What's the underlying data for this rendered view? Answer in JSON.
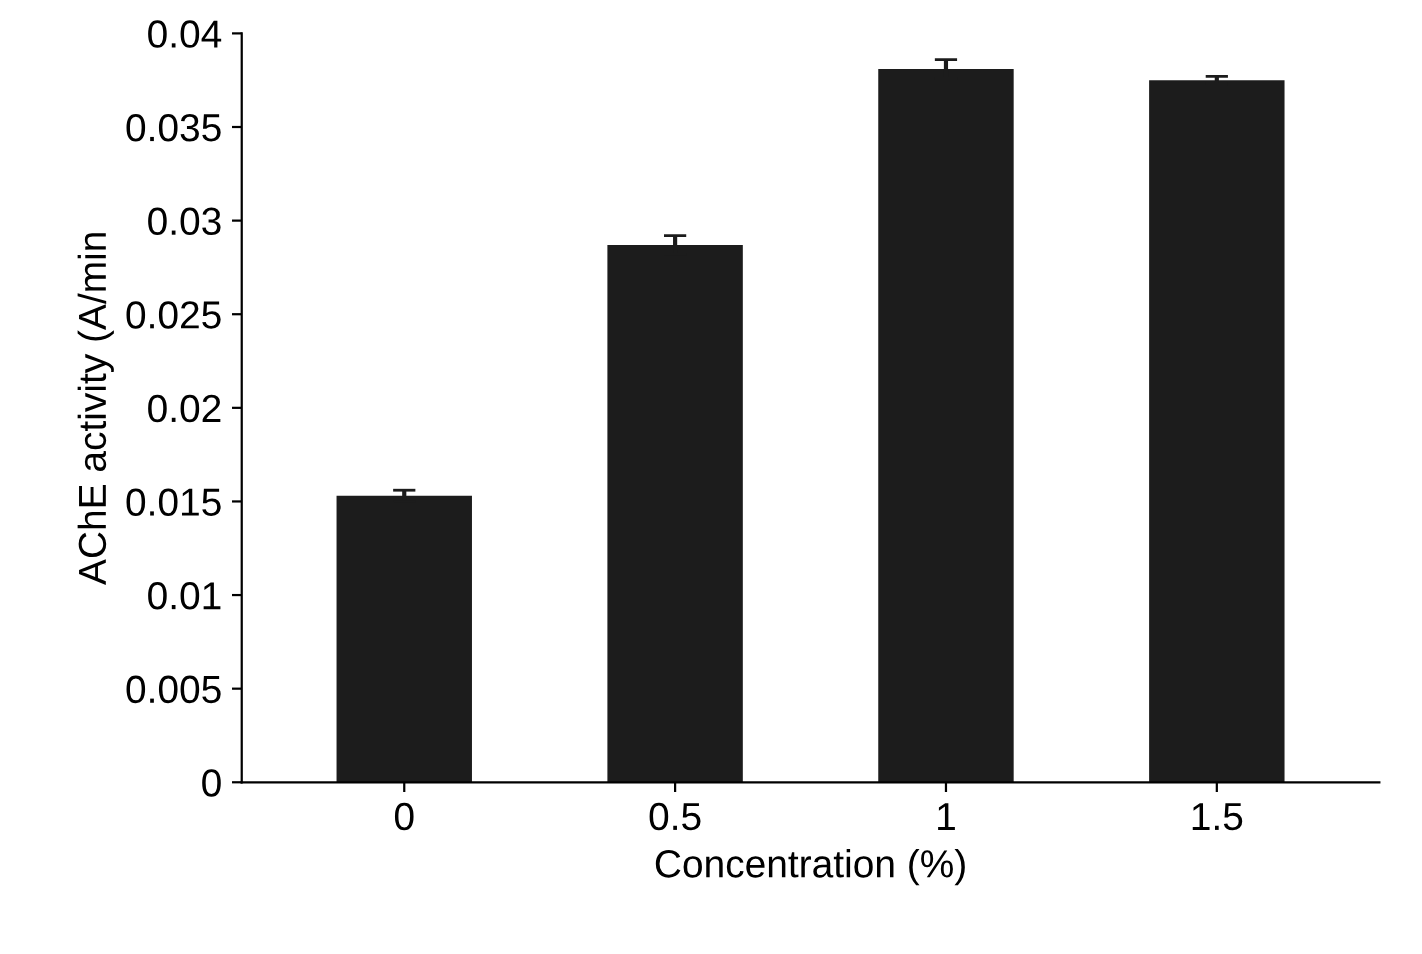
{
  "chart_data": {
    "type": "bar",
    "xlabel": "Concentration (%)",
    "ylabel": "AChE activity (A/min",
    "categories": [
      "0",
      "0.5",
      "1",
      "1.5"
    ],
    "values": [
      0.0153,
      0.0287,
      0.0381,
      0.0375
    ],
    "errors": [
      0.0003,
      0.0005,
      0.0005,
      0.0002
    ],
    "color": "#1c1c1c",
    "ylim": [
      0,
      0.04
    ],
    "yticks": [
      0,
      0.005,
      0.01,
      0.015,
      0.02,
      0.025,
      0.03,
      0.035,
      0.04
    ],
    "grid": false
  }
}
